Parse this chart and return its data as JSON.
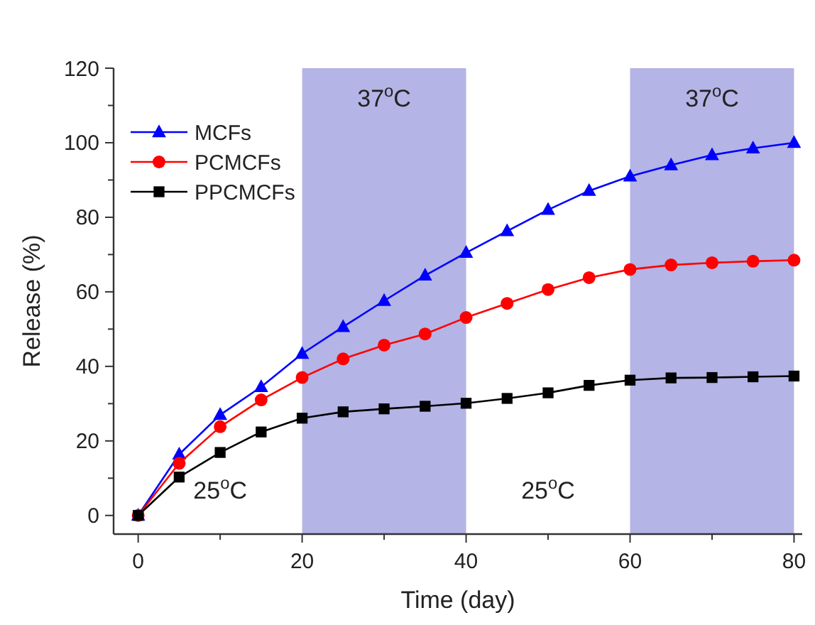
{
  "chart_data": {
    "type": "line",
    "xlabel": "Time (day)",
    "ylabel": "Release (%)",
    "x": [
      0,
      5,
      10,
      15,
      20,
      25,
      30,
      35,
      40,
      45,
      50,
      55,
      60,
      65,
      70,
      75,
      80
    ],
    "xlim": [
      -3,
      81
    ],
    "ylim": [
      -5,
      120
    ],
    "xticks": [
      0,
      {
        "value": 10,
        "label": null
      },
      20,
      {
        "value": 30,
        "label": null
      },
      40,
      {
        "value": 50,
        "label": null
      },
      60,
      {
        "value": 70,
        "label": null
      },
      80
    ],
    "yticks": [
      0,
      {
        "value": 10,
        "label": null
      },
      20,
      {
        "value": 30,
        "label": null
      },
      40,
      {
        "value": 50,
        "label": null
      },
      60,
      {
        "value": 70,
        "label": null
      },
      80,
      {
        "value": 90,
        "label": null
      },
      100,
      {
        "value": 110,
        "label": null
      },
      120
    ],
    "grid": false,
    "legend": "top left",
    "line_style": "solid",
    "series": [
      {
        "name": "MCFs",
        "color": "#0000ff",
        "marker": "triangle",
        "values": [
          0,
          16.4,
          27,
          34.5,
          43.4,
          50.6,
          57.6,
          64.4,
          70.5,
          76.3,
          82,
          87.1,
          91,
          94,
          96.7,
          98.5,
          100
        ]
      },
      {
        "name": "PCMCFs",
        "color": "#ff0000",
        "marker": "circle",
        "values": [
          0,
          14,
          23.8,
          31,
          37,
          42,
          45.7,
          48.7,
          53.1,
          56.9,
          60.6,
          63.8,
          66,
          67.2,
          67.8,
          68.2,
          68.5
        ]
      },
      {
        "name": "PPCMCFs",
        "color": "#000000",
        "marker": "square",
        "values": [
          0,
          10.3,
          16.9,
          22.4,
          26.1,
          27.8,
          28.6,
          29.3,
          30.1,
          31.4,
          32.9,
          34.9,
          36.3,
          36.9,
          37,
          37.2,
          37.4
        ]
      }
    ],
    "bands": [
      {
        "axis": "x",
        "from": 20,
        "to": 40,
        "label": "37$^{o}$C",
        "color": "#b4b4e6"
      },
      {
        "axis": "x",
        "from": 60,
        "to": 80,
        "label": "37$^{o}$C",
        "color": "#b4b4e6"
      }
    ],
    "annotations": [
      "25$^{o}$C",
      "25$^{o}$C"
    ]
  }
}
